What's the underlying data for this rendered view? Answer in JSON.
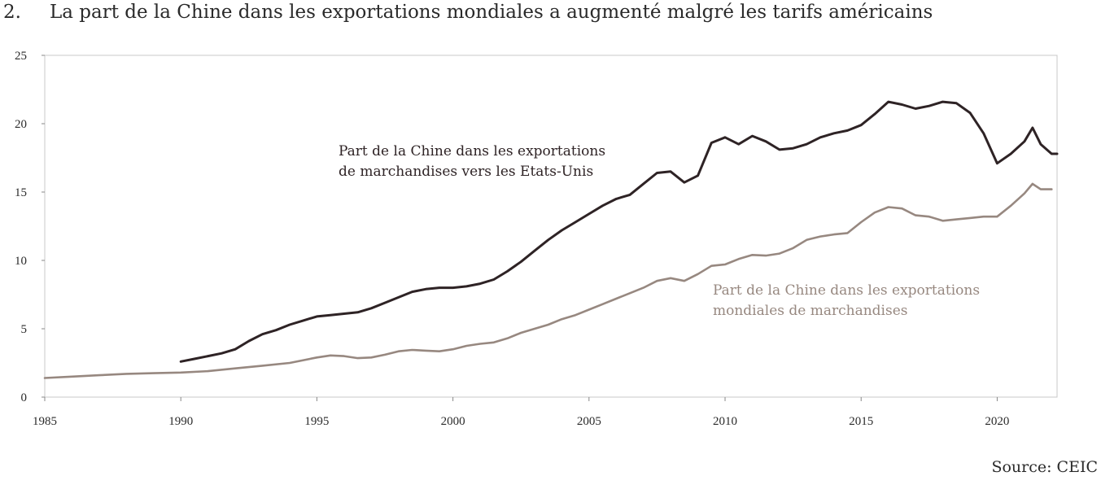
{
  "figure": {
    "number": "2.",
    "title": "La part de la Chine dans les exportations mondiales a augmenté malgré les tarifs américains",
    "source": "Source: CEIC"
  },
  "chart_data": {
    "type": "line",
    "xlim": [
      1985,
      2022.2
    ],
    "ylim": [
      0,
      25
    ],
    "xticks": [
      1985,
      1990,
      1995,
      2000,
      2005,
      2010,
      2015,
      2020
    ],
    "yticks": [
      0,
      5,
      10,
      15,
      20,
      25
    ],
    "grid": false,
    "series": [
      {
        "name": "Part de la Chine dans les exportations de marchandises vers les Etats-Unis",
        "label_lines": [
          "Part de la Chine dans les exportations",
          "de marchandises vers les Etats-Unis"
        ],
        "color": "#2e2325",
        "points": [
          [
            1990.0,
            2.6
          ],
          [
            1990.5,
            2.8
          ],
          [
            1991.0,
            3.0
          ],
          [
            1991.5,
            3.2
          ],
          [
            1992.0,
            3.5
          ],
          [
            1992.5,
            4.1
          ],
          [
            1993.0,
            4.6
          ],
          [
            1993.5,
            4.9
          ],
          [
            1994.0,
            5.3
          ],
          [
            1994.5,
            5.6
          ],
          [
            1995.0,
            5.9
          ],
          [
            1995.5,
            6.0
          ],
          [
            1996.0,
            6.1
          ],
          [
            1996.5,
            6.2
          ],
          [
            1997.0,
            6.5
          ],
          [
            1997.5,
            6.9
          ],
          [
            1998.0,
            7.3
          ],
          [
            1998.5,
            7.7
          ],
          [
            1999.0,
            7.9
          ],
          [
            1999.5,
            8.0
          ],
          [
            2000.0,
            8.0
          ],
          [
            2000.5,
            8.1
          ],
          [
            2001.0,
            8.3
          ],
          [
            2001.5,
            8.6
          ],
          [
            2002.0,
            9.2
          ],
          [
            2002.5,
            9.9
          ],
          [
            2003.0,
            10.7
          ],
          [
            2003.5,
            11.5
          ],
          [
            2004.0,
            12.2
          ],
          [
            2004.5,
            12.8
          ],
          [
            2005.0,
            13.4
          ],
          [
            2005.5,
            14.0
          ],
          [
            2006.0,
            14.5
          ],
          [
            2006.5,
            14.8
          ],
          [
            2007.0,
            15.6
          ],
          [
            2007.5,
            16.4
          ],
          [
            2008.0,
            16.5
          ],
          [
            2008.5,
            15.7
          ],
          [
            2009.0,
            16.2
          ],
          [
            2009.5,
            18.6
          ],
          [
            2010.0,
            19.0
          ],
          [
            2010.5,
            18.5
          ],
          [
            2011.0,
            19.1
          ],
          [
            2011.5,
            18.7
          ],
          [
            2012.0,
            18.1
          ],
          [
            2012.5,
            18.2
          ],
          [
            2013.0,
            18.5
          ],
          [
            2013.5,
            19.0
          ],
          [
            2014.0,
            19.3
          ],
          [
            2014.5,
            19.5
          ],
          [
            2015.0,
            19.9
          ],
          [
            2015.5,
            20.7
          ],
          [
            2016.0,
            21.6
          ],
          [
            2016.5,
            21.4
          ],
          [
            2017.0,
            21.1
          ],
          [
            2017.5,
            21.3
          ],
          [
            2018.0,
            21.6
          ],
          [
            2018.5,
            21.5
          ],
          [
            2019.0,
            20.8
          ],
          [
            2019.5,
            19.3
          ],
          [
            2020.0,
            17.1
          ],
          [
            2020.5,
            17.8
          ],
          [
            2021.0,
            18.7
          ],
          [
            2021.3,
            19.7
          ],
          [
            2021.6,
            18.5
          ],
          [
            2022.0,
            17.8
          ],
          [
            2022.2,
            17.8
          ]
        ]
      },
      {
        "name": "Part de la Chine dans les exportations mondiales de marchandises",
        "label_lines": [
          "Part de la Chine dans les exportations",
          "mondiales de marchandises"
        ],
        "color": "#978880",
        "points": [
          [
            1985.0,
            1.4
          ],
          [
            1986.0,
            1.5
          ],
          [
            1987.0,
            1.6
          ],
          [
            1988.0,
            1.7
          ],
          [
            1989.0,
            1.75
          ],
          [
            1990.0,
            1.8
          ],
          [
            1991.0,
            1.9
          ],
          [
            1992.0,
            2.1
          ],
          [
            1993.0,
            2.3
          ],
          [
            1994.0,
            2.5
          ],
          [
            1995.0,
            2.9
          ],
          [
            1995.5,
            3.05
          ],
          [
            1996.0,
            3.0
          ],
          [
            1996.5,
            2.85
          ],
          [
            1997.0,
            2.9
          ],
          [
            1997.5,
            3.1
          ],
          [
            1998.0,
            3.35
          ],
          [
            1998.5,
            3.45
          ],
          [
            1999.0,
            3.4
          ],
          [
            1999.5,
            3.35
          ],
          [
            2000.0,
            3.5
          ],
          [
            2000.5,
            3.75
          ],
          [
            2001.0,
            3.9
          ],
          [
            2001.5,
            4.0
          ],
          [
            2002.0,
            4.3
          ],
          [
            2002.5,
            4.7
          ],
          [
            2003.0,
            5.0
          ],
          [
            2003.5,
            5.3
          ],
          [
            2004.0,
            5.7
          ],
          [
            2004.5,
            6.0
          ],
          [
            2005.0,
            6.4
          ],
          [
            2005.5,
            6.8
          ],
          [
            2006.0,
            7.2
          ],
          [
            2006.5,
            7.6
          ],
          [
            2007.0,
            8.0
          ],
          [
            2007.5,
            8.5
          ],
          [
            2008.0,
            8.7
          ],
          [
            2008.5,
            8.5
          ],
          [
            2009.0,
            9.0
          ],
          [
            2009.5,
            9.6
          ],
          [
            2010.0,
            9.7
          ],
          [
            2010.5,
            10.1
          ],
          [
            2011.0,
            10.4
          ],
          [
            2011.5,
            10.35
          ],
          [
            2012.0,
            10.5
          ],
          [
            2012.5,
            10.9
          ],
          [
            2013.0,
            11.5
          ],
          [
            2013.5,
            11.75
          ],
          [
            2014.0,
            11.9
          ],
          [
            2014.5,
            12.0
          ],
          [
            2015.0,
            12.8
          ],
          [
            2015.5,
            13.5
          ],
          [
            2016.0,
            13.9
          ],
          [
            2016.5,
            13.8
          ],
          [
            2017.0,
            13.3
          ],
          [
            2017.5,
            13.2
          ],
          [
            2018.0,
            12.9
          ],
          [
            2018.5,
            13.0
          ],
          [
            2019.0,
            13.1
          ],
          [
            2019.5,
            13.2
          ],
          [
            2020.0,
            13.2
          ],
          [
            2020.5,
            14.0
          ],
          [
            2021.0,
            14.9
          ],
          [
            2021.3,
            15.6
          ],
          [
            2021.6,
            15.2
          ],
          [
            2022.0,
            15.2
          ]
        ]
      }
    ]
  }
}
